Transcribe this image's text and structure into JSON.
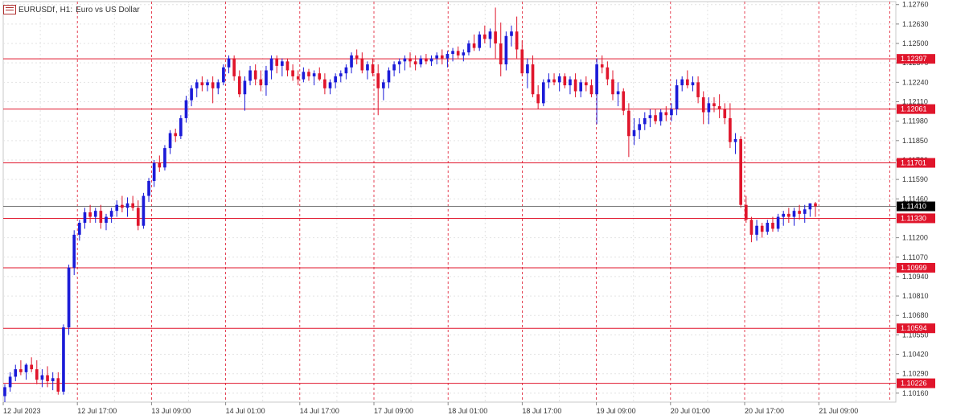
{
  "header": {
    "icon": "chart-window-icon",
    "symbol": "EURUSDf",
    "timeframe": "H1:",
    "description": "Euro vs US Dollar"
  },
  "colors": {
    "background": "#ffffff",
    "grid": "#e3e3e3",
    "bull": "#1b1bd8",
    "bear": "#e0152b",
    "level": "#e0152b",
    "session": "#e0152b",
    "current": "#555555"
  },
  "chart_data": {
    "type": "candlestick",
    "symbol": "EURUSDf",
    "timeframe": "H1",
    "ylim": [
      1.101,
      1.1278
    ],
    "y_ticks": [
      "1.12760",
      "1.12630",
      "1.12500",
      "1.12370",
      "1.12240",
      "1.12110",
      "1.11980",
      "1.11850",
      "1.11720",
      "1.11590",
      "1.11460",
      "1.11200",
      "1.11070",
      "1.10940",
      "1.10810",
      "1.10680",
      "1.10550",
      "1.10420",
      "1.10290",
      "1.10160"
    ],
    "x_labels": [
      "12 Jul 2023",
      "12 Jul 17:00",
      "13 Jul 09:00",
      "14 Jul 01:00",
      "14 Jul 17:00",
      "17 Jul 09:00",
      "18 Jul 01:00",
      "18 Jul 17:00",
      "19 Jul 09:00",
      "20 Jul 01:00",
      "20 Jul 17:00",
      "21 Jul 09:00"
    ],
    "horizontal_levels": [
      "1.12397",
      "1.12061",
      "1.11701",
      "1.11330",
      "1.10999",
      "1.10594",
      "1.10226"
    ],
    "current_price": "1.11410",
    "candles": [
      [
        1.1014,
        1.1022,
        1.101,
        1.102
      ],
      [
        1.102,
        1.103,
        1.1017,
        1.1027
      ],
      [
        1.1027,
        1.1035,
        1.1024,
        1.1032
      ],
      [
        1.1032,
        1.1038,
        1.1028,
        1.103
      ],
      [
        1.103,
        1.1036,
        1.1025,
        1.1035
      ],
      [
        1.1035,
        1.104,
        1.103,
        1.1032
      ],
      [
        1.1032,
        1.1038,
        1.1022,
        1.1025
      ],
      [
        1.1025,
        1.1032,
        1.102,
        1.1028
      ],
      [
        1.1028,
        1.1034,
        1.102,
        1.1024
      ],
      [
        1.1024,
        1.103,
        1.1018,
        1.1026
      ],
      [
        1.1026,
        1.103,
        1.1015,
        1.1017
      ],
      [
        1.1017,
        1.1062,
        1.1015,
        1.106
      ],
      [
        1.106,
        1.1102,
        1.1055,
        1.11
      ],
      [
        1.11,
        1.1125,
        1.1095,
        1.1122
      ],
      [
        1.1122,
        1.1132,
        1.1118,
        1.113
      ],
      [
        1.113,
        1.114,
        1.1126,
        1.1137
      ],
      [
        1.1137,
        1.1142,
        1.113,
        1.1134
      ],
      [
        1.1134,
        1.114,
        1.113,
        1.1138
      ],
      [
        1.1138,
        1.1142,
        1.1126,
        1.113
      ],
      [
        1.113,
        1.1136,
        1.1125,
        1.1134
      ],
      [
        1.1134,
        1.114,
        1.113,
        1.1138
      ],
      [
        1.1138,
        1.1145,
        1.1134,
        1.1142
      ],
      [
        1.1142,
        1.1148,
        1.1137,
        1.114
      ],
      [
        1.114,
        1.1147,
        1.1134,
        1.1143
      ],
      [
        1.1143,
        1.1148,
        1.1138,
        1.114
      ],
      [
        1.114,
        1.1145,
        1.1125,
        1.1128
      ],
      [
        1.1128,
        1.115,
        1.1126,
        1.1148
      ],
      [
        1.1148,
        1.116,
        1.1144,
        1.1158
      ],
      [
        1.1158,
        1.1172,
        1.1154,
        1.117
      ],
      [
        1.117,
        1.1175,
        1.1164,
        1.1167
      ],
      [
        1.1167,
        1.1182,
        1.1165,
        1.118
      ],
      [
        1.118,
        1.1192,
        1.1176,
        1.119
      ],
      [
        1.119,
        1.1193,
        1.1184,
        1.1188
      ],
      [
        1.1188,
        1.1202,
        1.1186,
        1.12
      ],
      [
        1.12,
        1.1215,
        1.1197,
        1.1212
      ],
      [
        1.1212,
        1.1222,
        1.1208,
        1.122
      ],
      [
        1.122,
        1.1226,
        1.1214,
        1.1224
      ],
      [
        1.1224,
        1.1228,
        1.1218,
        1.1222
      ],
      [
        1.1222,
        1.1226,
        1.1218,
        1.1224
      ],
      [
        1.1224,
        1.1228,
        1.121,
        1.122
      ],
      [
        1.122,
        1.1226,
        1.1216,
        1.1224
      ],
      [
        1.1224,
        1.1236,
        1.1222,
        1.1234
      ],
      [
        1.1234,
        1.1242,
        1.123,
        1.124
      ],
      [
        1.124,
        1.1242,
        1.1225,
        1.1228
      ],
      [
        1.1228,
        1.1232,
        1.1214,
        1.1216
      ],
      [
        1.1216,
        1.1228,
        1.1205,
        1.1225
      ],
      [
        1.1225,
        1.1235,
        1.1222,
        1.1232
      ],
      [
        1.1232,
        1.1236,
        1.1222,
        1.1226
      ],
      [
        1.1226,
        1.1232,
        1.1218,
        1.1222
      ],
      [
        1.1222,
        1.1235,
        1.1215,
        1.1232
      ],
      [
        1.1232,
        1.1242,
        1.1226,
        1.124
      ],
      [
        1.124,
        1.1242,
        1.123,
        1.1235
      ],
      [
        1.1235,
        1.124,
        1.1228,
        1.1238
      ],
      [
        1.1238,
        1.124,
        1.1228,
        1.1232
      ],
      [
        1.1232,
        1.1236,
        1.1225,
        1.1228
      ],
      [
        1.1228,
        1.1232,
        1.1222,
        1.1226
      ],
      [
        1.1226,
        1.1234,
        1.1224,
        1.1231
      ],
      [
        1.1231,
        1.1233,
        1.1225,
        1.1228
      ],
      [
        1.1228,
        1.1232,
        1.1222,
        1.123
      ],
      [
        1.123,
        1.1234,
        1.1225,
        1.1226
      ],
      [
        1.1226,
        1.123,
        1.1216,
        1.122
      ],
      [
        1.122,
        1.1226,
        1.1216,
        1.1224
      ],
      [
        1.1224,
        1.123,
        1.122,
        1.1228
      ],
      [
        1.1228,
        1.1232,
        1.1224,
        1.123
      ],
      [
        1.123,
        1.1236,
        1.1226,
        1.1234
      ],
      [
        1.1234,
        1.1244,
        1.123,
        1.1242
      ],
      [
        1.1242,
        1.1246,
        1.1236,
        1.124
      ],
      [
        1.124,
        1.1244,
        1.123,
        1.1232
      ],
      [
        1.1232,
        1.1238,
        1.1226,
        1.1236
      ],
      [
        1.1236,
        1.124,
        1.1228,
        1.123
      ],
      [
        1.123,
        1.1236,
        1.1202,
        1.122
      ],
      [
        1.122,
        1.1226,
        1.1212,
        1.1224
      ],
      [
        1.1224,
        1.1234,
        1.122,
        1.1232
      ],
      [
        1.1232,
        1.1238,
        1.1228,
        1.1236
      ],
      [
        1.1236,
        1.124,
        1.123,
        1.1238
      ],
      [
        1.1238,
        1.1242,
        1.1232,
        1.124
      ],
      [
        1.124,
        1.1244,
        1.1234,
        1.1238
      ],
      [
        1.1238,
        1.1242,
        1.1232,
        1.1236
      ],
      [
        1.1236,
        1.1242,
        1.1234,
        1.124
      ],
      [
        1.124,
        1.1243,
        1.1236,
        1.1238
      ],
      [
        1.1238,
        1.1242,
        1.1235,
        1.124
      ],
      [
        1.124,
        1.1244,
        1.1236,
        1.1242
      ],
      [
        1.1242,
        1.1246,
        1.1236,
        1.124
      ],
      [
        1.124,
        1.1245,
        1.1234,
        1.1243
      ],
      [
        1.1243,
        1.1247,
        1.1238,
        1.1245
      ],
      [
        1.1245,
        1.1248,
        1.124,
        1.1242
      ],
      [
        1.1242,
        1.1246,
        1.1238,
        1.1244
      ],
      [
        1.1244,
        1.1252,
        1.1242,
        1.125
      ],
      [
        1.125,
        1.1256,
        1.1245,
        1.1247
      ],
      [
        1.1247,
        1.1258,
        1.1245,
        1.1256
      ],
      [
        1.1256,
        1.1262,
        1.125,
        1.1253
      ],
      [
        1.1253,
        1.126,
        1.1247,
        1.1258
      ],
      [
        1.1258,
        1.1274,
        1.124,
        1.125
      ],
      [
        1.125,
        1.1264,
        1.1228,
        1.1236
      ],
      [
        1.1236,
        1.1258,
        1.1232,
        1.1255
      ],
      [
        1.1255,
        1.1262,
        1.1248,
        1.1258
      ],
      [
        1.1258,
        1.1268,
        1.124,
        1.1246
      ],
      [
        1.1246,
        1.1252,
        1.1228,
        1.123
      ],
      [
        1.123,
        1.124,
        1.122,
        1.1236
      ],
      [
        1.1236,
        1.1242,
        1.1214,
        1.1216
      ],
      [
        1.1216,
        1.1222,
        1.1206,
        1.121
      ],
      [
        1.121,
        1.1226,
        1.1208,
        1.1224
      ],
      [
        1.1224,
        1.123,
        1.122,
        1.1226
      ],
      [
        1.1226,
        1.123,
        1.1222,
        1.1224
      ],
      [
        1.1224,
        1.123,
        1.1218,
        1.1228
      ],
      [
        1.1228,
        1.123,
        1.122,
        1.1222
      ],
      [
        1.1222,
        1.1228,
        1.1216,
        1.1226
      ],
      [
        1.1226,
        1.123,
        1.1214,
        1.1218
      ],
      [
        1.1218,
        1.1226,
        1.1214,
        1.1224
      ],
      [
        1.1224,
        1.1228,
        1.1218,
        1.1222
      ],
      [
        1.1222,
        1.1226,
        1.1214,
        1.1216
      ],
      [
        1.1216,
        1.124,
        1.1196,
        1.1236
      ],
      [
        1.1236,
        1.1242,
        1.123,
        1.1234
      ],
      [
        1.1234,
        1.1238,
        1.1222,
        1.1226
      ],
      [
        1.1226,
        1.1232,
        1.1212,
        1.1216
      ],
      [
        1.1216,
        1.1224,
        1.1208,
        1.1218
      ],
      [
        1.1218,
        1.122,
        1.1202,
        1.1205
      ],
      [
        1.1205,
        1.121,
        1.1174,
        1.1188
      ],
      [
        1.1188,
        1.12,
        1.1182,
        1.1192
      ],
      [
        1.1192,
        1.12,
        1.1186,
        1.1196
      ],
      [
        1.1196,
        1.1204,
        1.1192,
        1.12
      ],
      [
        1.12,
        1.1206,
        1.1194,
        1.1202
      ],
      [
        1.1202,
        1.1206,
        1.1196,
        1.1198
      ],
      [
        1.1198,
        1.1206,
        1.1195,
        1.1204
      ],
      [
        1.1204,
        1.1208,
        1.1198,
        1.1202
      ],
      [
        1.1202,
        1.121,
        1.1198,
        1.1206
      ],
      [
        1.1206,
        1.1226,
        1.1202,
        1.1222
      ],
      [
        1.1222,
        1.1228,
        1.1218,
        1.1226
      ],
      [
        1.1226,
        1.1232,
        1.122,
        1.1222
      ],
      [
        1.1222,
        1.1228,
        1.1218,
        1.1224
      ],
      [
        1.1224,
        1.1228,
        1.121,
        1.1214
      ],
      [
        1.1214,
        1.1218,
        1.1196,
        1.1204
      ],
      [
        1.1204,
        1.1214,
        1.1196,
        1.121
      ],
      [
        1.121,
        1.1214,
        1.1204,
        1.1208
      ],
      [
        1.1208,
        1.1216,
        1.12,
        1.1206
      ],
      [
        1.1206,
        1.121,
        1.1196,
        1.12
      ],
      [
        1.12,
        1.121,
        1.118,
        1.1184
      ],
      [
        1.1184,
        1.119,
        1.1176,
        1.1186
      ],
      [
        1.1186,
        1.1188,
        1.114,
        1.1142
      ],
      [
        1.1142,
        1.1148,
        1.113,
        1.1132
      ],
      [
        1.1132,
        1.1134,
        1.1117,
        1.1122
      ],
      [
        1.1122,
        1.1132,
        1.1118,
        1.1128
      ],
      [
        1.1128,
        1.113,
        1.112,
        1.1124
      ],
      [
        1.1124,
        1.1132,
        1.1122,
        1.113
      ],
      [
        1.113,
        1.1134,
        1.1124,
        1.1126
      ],
      [
        1.1126,
        1.1136,
        1.1124,
        1.1134
      ],
      [
        1.1134,
        1.1138,
        1.1128,
        1.1136
      ],
      [
        1.1136,
        1.114,
        1.113,
        1.1134
      ],
      [
        1.1134,
        1.114,
        1.1128,
        1.1138
      ],
      [
        1.1138,
        1.1142,
        1.1132,
        1.1136
      ],
      [
        1.1136,
        1.1142,
        1.113,
        1.1139
      ],
      [
        1.1139,
        1.1143,
        1.1134,
        1.1143
      ],
      [
        1.1143,
        1.1144,
        1.1134,
        1.1141
      ]
    ]
  }
}
